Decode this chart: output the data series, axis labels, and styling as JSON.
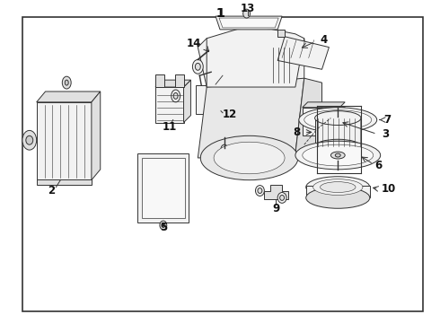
{
  "bg_color": "#ffffff",
  "border_color": "#222222",
  "fig_width": 4.9,
  "fig_height": 3.6,
  "dpi": 100,
  "line_color": "#333333",
  "lw": 0.7
}
